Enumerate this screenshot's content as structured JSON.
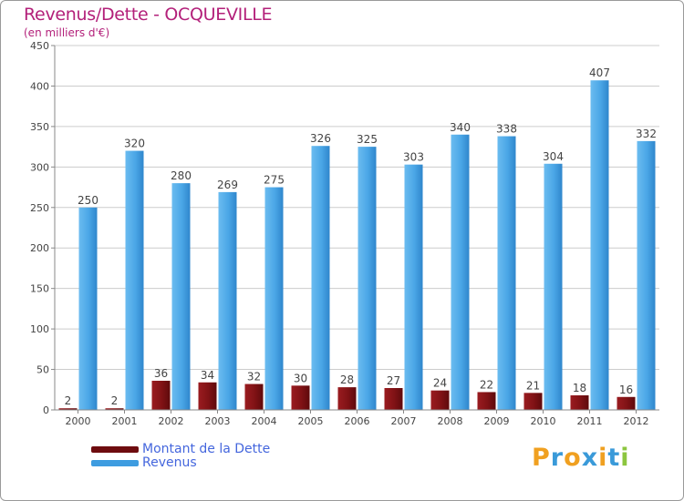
{
  "title": "Revenus/Dette - OCQUEVILLE",
  "subtitle": "(en milliers d'€)",
  "legend": {
    "debt_label": "Montant de la Dette",
    "revenue_label": "Revenus"
  },
  "logo": {
    "letters": [
      "P",
      "r",
      "o",
      "x",
      "i",
      "t",
      "i"
    ]
  },
  "colors": {
    "title": "#b3207a",
    "debt": "#7a0f12",
    "revenue": "#3e9ce0",
    "axis": "#888888",
    "grid": "#cccccc",
    "logo": [
      "#f0a020",
      "#3a9ad9",
      "#f0a020",
      "#3a9ad9",
      "#f0a020",
      "#3a9ad9",
      "#8cc63f"
    ]
  },
  "chart_data": {
    "type": "bar",
    "title": "Revenus/Dette - OCQUEVILLE",
    "subtitle": "(en milliers d'€)",
    "xlabel": "",
    "ylabel": "",
    "ylim": [
      0,
      450
    ],
    "yticks": [
      0,
      50,
      100,
      150,
      200,
      250,
      300,
      350,
      400,
      450
    ],
    "grid": true,
    "legend_position": "bottom-left",
    "categories": [
      "2000",
      "2001",
      "2002",
      "2003",
      "2004",
      "2005",
      "2006",
      "2007",
      "2008",
      "2009",
      "2010",
      "2011",
      "2012"
    ],
    "series": [
      {
        "name": "Montant de la Dette",
        "values": [
          2,
          2,
          36,
          34,
          32,
          30,
          28,
          27,
          24,
          22,
          21,
          18,
          16
        ]
      },
      {
        "name": "Revenus",
        "values": [
          250,
          320,
          280,
          269,
          275,
          326,
          325,
          303,
          340,
          338,
          304,
          407,
          332
        ]
      }
    ]
  }
}
